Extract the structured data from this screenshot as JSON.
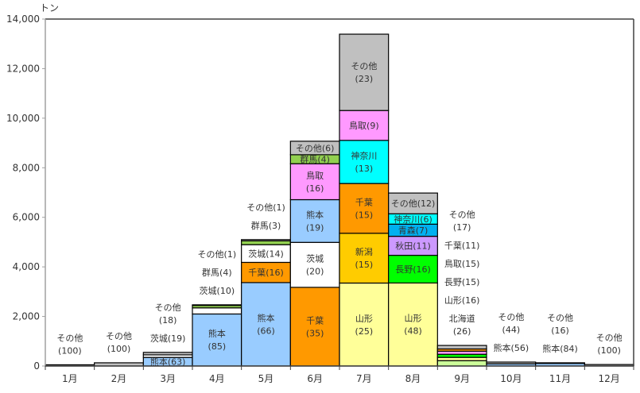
{
  "chart_data": {
    "type": "bar",
    "stacked": true,
    "title": "",
    "ylabel": "トン",
    "xlabel": "",
    "ylim": [
      0,
      14000
    ],
    "yticks": [
      0,
      2000,
      4000,
      6000,
      8000,
      10000,
      12000,
      14000
    ],
    "ytick_labels": [
      "0",
      "2,000",
      "4,000",
      "6,000",
      "8,000",
      "10,000",
      "12,000",
      "14,000"
    ],
    "grid": false,
    "colors": {
      "熊本": "#99ccff",
      "千葉": "#ff9900",
      "茨城": "#ffffff",
      "群馬": "#92d050",
      "その他": "#c0c0c0",
      "鳥取": "#ff99ff",
      "神奈川": "#00ffff",
      "新潟": "#ffcc00",
      "山形": "#ffff99",
      "長野": "#00ff00",
      "秋田": "#cc99ff",
      "青森": "#00b0f0",
      "北海道": "#ccff99"
    },
    "months": [
      {
        "label": "1月",
        "total": 50,
        "segments": [
          {
            "name": "その他",
            "pct": 100,
            "lines": [
              "その他",
              "(100)"
            ],
            "pos": "above"
          }
        ]
      },
      {
        "label": "2月",
        "total": 130,
        "segments": [
          {
            "name": "その他",
            "pct": 100,
            "lines": [
              "その他",
              "(100)"
            ],
            "pos": "above"
          }
        ]
      },
      {
        "label": "3月",
        "total": 550,
        "segments": [
          {
            "name": "熊本",
            "pct": 63,
            "lines": [
              "熊本(63)"
            ],
            "pos": "inside"
          },
          {
            "name": "茨城",
            "pct": 19,
            "lines": [
              "茨城(19)"
            ],
            "pos": "above"
          },
          {
            "name": "その他",
            "pct": 18,
            "lines": [
              "その他",
              "(18)"
            ],
            "pos": "above"
          }
        ]
      },
      {
        "label": "4月",
        "total": 2470,
        "segments": [
          {
            "name": "熊本",
            "pct": 85,
            "lines": [
              "熊本",
              "(85)"
            ],
            "pos": "inside"
          },
          {
            "name": "茨城",
            "pct": 10,
            "lines": [
              "茨城(10)"
            ],
            "pos": "above"
          },
          {
            "name": "群馬",
            "pct": 4,
            "lines": [
              "群馬(4)"
            ],
            "pos": "above"
          },
          {
            "name": "その他",
            "pct": 1,
            "lines": [
              "その他(1)"
            ],
            "pos": "above"
          }
        ]
      },
      {
        "label": "5月",
        "total": 5100,
        "segments": [
          {
            "name": "熊本",
            "pct": 66,
            "lines": [
              "熊本",
              "(66)"
            ],
            "pos": "inside"
          },
          {
            "name": "千葉",
            "pct": 16,
            "lines": [
              "千葉(16)"
            ],
            "pos": "inside"
          },
          {
            "name": "茨城",
            "pct": 14,
            "lines": [
              "茨城(14)"
            ],
            "pos": "inside"
          },
          {
            "name": "群馬",
            "pct": 3,
            "lines": [
              "群馬(3)"
            ],
            "pos": "above"
          },
          {
            "name": "その他",
            "pct": 1,
            "lines": [
              "その他(1)"
            ],
            "pos": "above"
          }
        ]
      },
      {
        "label": "6月",
        "total": 9070,
        "segments": [
          {
            "name": "千葉",
            "pct": 35,
            "lines": [
              "千葉",
              "(35)"
            ],
            "pos": "inside"
          },
          {
            "name": "茨城",
            "pct": 20,
            "lines": [
              "茨城",
              "(20)"
            ],
            "pos": "inside"
          },
          {
            "name": "熊本",
            "pct": 19,
            "lines": [
              "熊本",
              "(19)"
            ],
            "pos": "inside"
          },
          {
            "name": "鳥取",
            "pct": 16,
            "lines": [
              "鳥取",
              "(16)"
            ],
            "pos": "inside"
          },
          {
            "name": "群馬",
            "pct": 4,
            "lines": [
              "群馬(4)"
            ],
            "pos": "inside"
          },
          {
            "name": "その他",
            "pct": 6,
            "lines": [
              "その他(6)"
            ],
            "pos": "inside"
          }
        ]
      },
      {
        "label": "7月",
        "total": 13390,
        "segments": [
          {
            "name": "山形",
            "pct": 25,
            "lines": [
              "山形",
              "(25)"
            ],
            "pos": "inside"
          },
          {
            "name": "新潟",
            "pct": 15,
            "lines": [
              "新潟",
              "(15)"
            ],
            "pos": "inside"
          },
          {
            "name": "千葉",
            "pct": 15,
            "lines": [
              "千葉",
              "(15)"
            ],
            "pos": "inside"
          },
          {
            "name": "神奈川",
            "pct": 13,
            "lines": [
              "神奈川",
              "(13)"
            ],
            "pos": "inside"
          },
          {
            "name": "鳥取",
            "pct": 9,
            "lines": [
              "鳥取(9)"
            ],
            "pos": "inside"
          },
          {
            "name": "その他",
            "pct": 23,
            "lines": [
              "その他",
              "(23)"
            ],
            "pos": "inside"
          }
        ]
      },
      {
        "label": "8月",
        "total": 6980,
        "segments": [
          {
            "name": "山形",
            "pct": 48,
            "lines": [
              "山形",
              "(48)"
            ],
            "pos": "inside"
          },
          {
            "name": "長野",
            "pct": 16,
            "lines": [
              "長野(16)"
            ],
            "pos": "inside"
          },
          {
            "name": "秋田",
            "pct": 11,
            "lines": [
              "秋田(11)"
            ],
            "pos": "inside"
          },
          {
            "name": "青森",
            "pct": 7,
            "lines": [
              "青森(7)"
            ],
            "pos": "inside"
          },
          {
            "name": "神奈川",
            "pct": 6,
            "lines": [
              "神奈川(6)"
            ],
            "pos": "inside"
          },
          {
            "name": "その他",
            "pct": 12,
            "lines": [
              "その他(12)"
            ],
            "pos": "inside"
          }
        ]
      },
      {
        "label": "9月",
        "total": 830,
        "segments": [
          {
            "name": "北海道",
            "pct": 26,
            "lines": [
              "北海道",
              "(26)"
            ],
            "pos": "above"
          },
          {
            "name": "山形",
            "pct": 16,
            "lines": [
              "山形(16)"
            ],
            "pos": "above"
          },
          {
            "name": "長野",
            "pct": 15,
            "lines": [
              "長野(15)"
            ],
            "pos": "above"
          },
          {
            "name": "鳥取",
            "pct": 15,
            "lines": [
              "鳥取(15)"
            ],
            "pos": "above"
          },
          {
            "name": "千葉",
            "pct": 11,
            "lines": [
              "千葉(11)"
            ],
            "pos": "above"
          },
          {
            "name": "その他",
            "pct": 17,
            "lines": [
              "その他",
              "(17)"
            ],
            "pos": "above"
          }
        ]
      },
      {
        "label": "10月",
        "total": 160,
        "segments": [
          {
            "name": "熊本",
            "pct": 56,
            "lines": [
              "熊本(56)"
            ],
            "pos": "above"
          },
          {
            "name": "その他",
            "pct": 44,
            "lines": [
              "その他",
              "(44)"
            ],
            "pos": "above"
          }
        ]
      },
      {
        "label": "11月",
        "total": 130,
        "segments": [
          {
            "name": "熊本",
            "pct": 84,
            "lines": [
              "熊本(84)"
            ],
            "pos": "above"
          },
          {
            "name": "その他",
            "pct": 16,
            "lines": [
              "その他",
              "(16)"
            ],
            "pos": "above"
          }
        ]
      },
      {
        "label": "12月",
        "total": 60,
        "segments": [
          {
            "name": "その他",
            "pct": 100,
            "lines": [
              "その他",
              "(100)"
            ],
            "pos": "above"
          }
        ]
      }
    ]
  }
}
